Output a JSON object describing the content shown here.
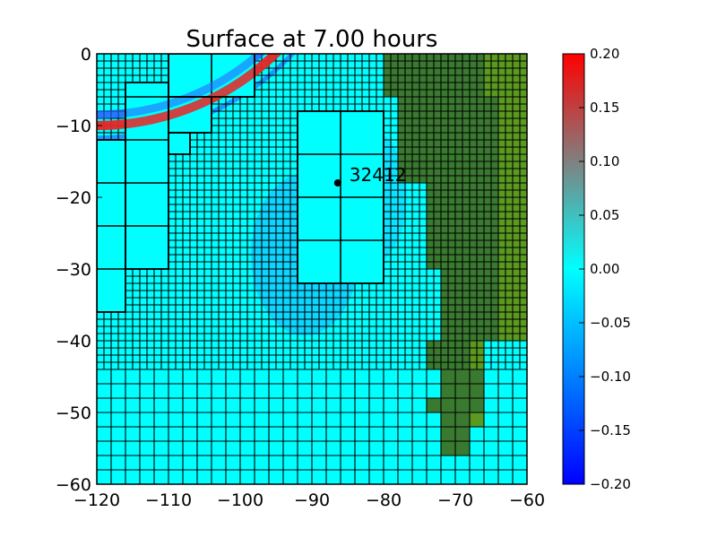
{
  "chart_data": {
    "type": "heatmap",
    "title": "Surface at 7.00 hours",
    "xlabel": "",
    "ylabel": "",
    "xlim": [
      -120,
      -60
    ],
    "ylim": [
      -60,
      0
    ],
    "x_ticks": [
      -120,
      -110,
      -100,
      -90,
      -80,
      -70,
      -60
    ],
    "x_tick_labels": [
      "−120",
      "−110",
      "−100",
      "−90",
      "−80",
      "−70",
      "−60"
    ],
    "y_ticks": [
      0,
      -10,
      -20,
      -30,
      -40,
      -50,
      -60
    ],
    "y_tick_labels": [
      "0",
      "−10",
      "−20",
      "−30",
      "−40",
      "−50",
      "−60"
    ],
    "colorbar": {
      "vmin": -0.2,
      "vmax": 0.2,
      "ticks": [
        0.2,
        0.15,
        0.1,
        0.05,
        0.0,
        -0.05,
        -0.1,
        -0.15,
        -0.2
      ],
      "tick_labels": [
        "0.20",
        "0.15",
        "0.10",
        "0.05",
        "0.00",
        "−0.05",
        "−0.10",
        "−0.15",
        "−0.20"
      ],
      "colormap": [
        "#0000ff",
        "#0080ff",
        "#00ffff",
        "#808080",
        "#ff0000"
      ]
    },
    "colors": {
      "water": "#00ffff",
      "land_dark": "#3a7a30",
      "land_light": "#5a9a20",
      "wave_red": "#e03030",
      "wave_blue": "#2a6aff",
      "grid": "#000000",
      "gauge": "#000000"
    },
    "gauges": [
      {
        "label": "32412",
        "x": -86.4,
        "y": -18.0
      }
    ],
    "fine_grid_region": {
      "x": [
        -120,
        -60
      ],
      "y": [
        -44,
        0
      ],
      "cell": 1
    },
    "coarse_grid_region": {
      "x": [
        -120,
        -60
      ],
      "y": [
        -60,
        -44
      ],
      "cell": 2
    },
    "refined_patches": [
      {
        "x": [
          -116,
          -110
        ],
        "y": [
          -30,
          -4
        ],
        "cell": 6
      },
      {
        "x": [
          -120,
          -116
        ],
        "y": [
          -36,
          -12
        ],
        "cell": 6
      },
      {
        "x": [
          -110,
          -104
        ],
        "y": [
          -11,
          -6
        ],
        "cell": 6
      },
      {
        "x": [
          -110,
          -107
        ],
        "y": [
          -14,
          -11
        ],
        "cell": 3
      },
      {
        "x": [
          -110,
          -98
        ],
        "y": [
          -6,
          0
        ],
        "cell": 6
      },
      {
        "x": [
          -92,
          -80
        ],
        "y": [
          -32,
          -8
        ],
        "cell": 6
      }
    ],
    "land_blocks": [
      {
        "x": [
          -80,
          -66
        ],
        "y": [
          -6,
          0
        ],
        "shade": "dark"
      },
      {
        "x": [
          -66,
          -60
        ],
        "y": [
          -6,
          0
        ],
        "shade": "light"
      },
      {
        "x": [
          -78,
          -64
        ],
        "y": [
          -18,
          -6
        ],
        "shade": "dark"
      },
      {
        "x": [
          -64,
          -60
        ],
        "y": [
          -40,
          -6
        ],
        "shade": "light"
      },
      {
        "x": [
          -74,
          -64
        ],
        "y": [
          -30,
          -18
        ],
        "shade": "dark"
      },
      {
        "x": [
          -72,
          -64
        ],
        "y": [
          -40,
          -30
        ],
        "shade": "dark"
      },
      {
        "x": [
          -74,
          -68
        ],
        "y": [
          -44,
          -40
        ],
        "shade": "dark"
      },
      {
        "x": [
          -68,
          -66
        ],
        "y": [
          -44,
          -40
        ],
        "shade": "light"
      },
      {
        "x": [
          -72,
          -66
        ],
        "y": [
          -50,
          -44
        ],
        "shade": "dark"
      },
      {
        "x": [
          -74,
          -72
        ],
        "y": [
          -50,
          -48
        ],
        "shade": "dark"
      },
      {
        "x": [
          -72,
          -68
        ],
        "y": [
          -56,
          -50
        ],
        "shade": "dark"
      },
      {
        "x": [
          -68,
          -66
        ],
        "y": [
          -52,
          -50
        ],
        "shade": "light"
      }
    ],
    "wavefront": {
      "center": [
        -120,
        26
      ],
      "red_radius": 36,
      "blue_radius": 34.5
    }
  }
}
